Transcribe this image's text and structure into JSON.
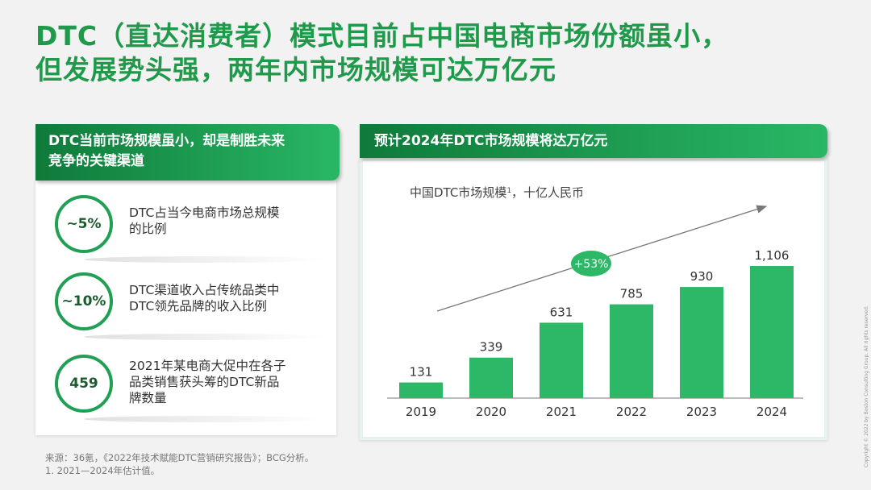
{
  "slide": {
    "title_line1": "DTC（直达消费者）模式目前占中国电商市场份额虽小，",
    "title_line2": "但发展势头强，两年内市场规模可达万亿元"
  },
  "left": {
    "banner_line1": "DTC当前市场规模虽小，却是制胜未来",
    "banner_line2": "竞争的关键渠道",
    "stats": [
      {
        "value": "~5%",
        "line1": "DTC占当今电商市场总规模",
        "line2": "的比例",
        "line3": ""
      },
      {
        "value": "~10%",
        "line1": "DTC渠道收入占传统品类中",
        "line2": "DTC领先品牌的收入比例",
        "line3": ""
      },
      {
        "value": "459",
        "line1": "2021年某电商大促中在各子",
        "line2": "品类销售获头筹的DTC新品",
        "line3": "牌数量"
      }
    ]
  },
  "right": {
    "banner": "预计2024年DTC市场规模将达万亿元",
    "growth_label": "+53%"
  },
  "chart_data": {
    "type": "bar",
    "title": "中国DTC市场规模",
    "title_sup": "1",
    "title_unit": "，十亿人民币",
    "categories": [
      "2019",
      "2020",
      "2021",
      "2022",
      "2023",
      "2024"
    ],
    "values": [
      131,
      339,
      631,
      785,
      930,
      1106
    ],
    "value_labels": [
      "131",
      "339",
      "631",
      "785",
      "930",
      "1,106"
    ],
    "bar_color": "#2cb866",
    "ylim": [
      0,
      1106
    ]
  },
  "footer": {
    "source": "来源：36氪，《2022年技术赋能DTC营销研究报告》；BCG分析。",
    "note": "1. 2021—2024年估计值。",
    "copyright": "Copyright © 2022 by Boston Consulting Group. All rights reserved."
  }
}
